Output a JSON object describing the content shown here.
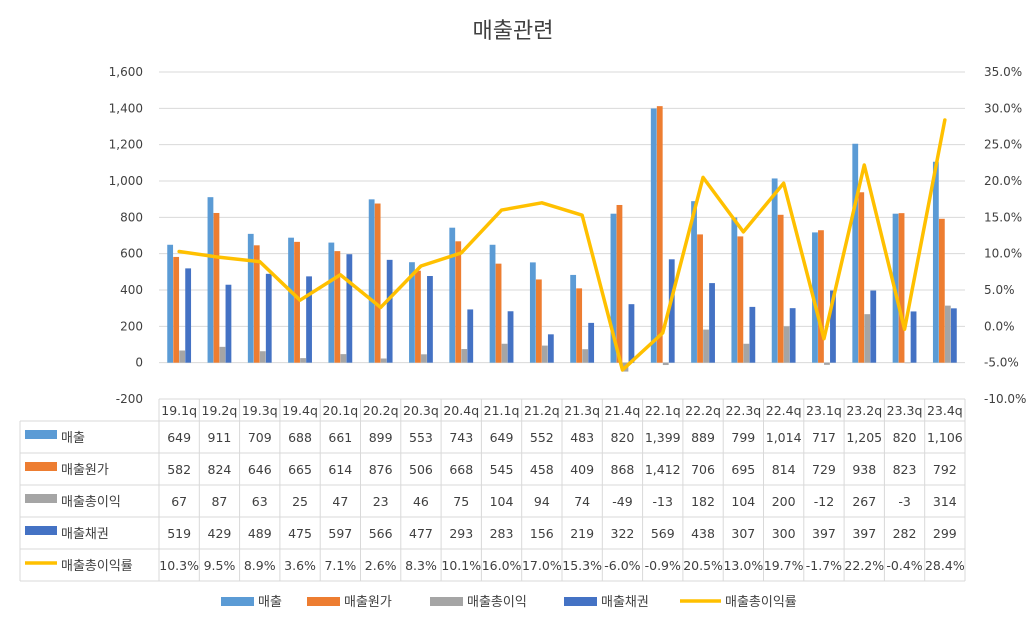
{
  "chart_data": {
    "type": "bar",
    "title": "매출관련",
    "categories": [
      "19.1q",
      "19.2q",
      "19.3q",
      "19.4q",
      "20.1q",
      "20.2q",
      "20.3q",
      "20.4q",
      "21.1q",
      "21.2q",
      "21.3q",
      "21.4q",
      "22.1q",
      "22.2q",
      "22.3q",
      "22.4q",
      "23.1q",
      "23.2q",
      "23.3q",
      "23.4q"
    ],
    "ylim": [
      -200,
      1600
    ],
    "y_ticks": [
      "-200",
      "0",
      "200",
      "400",
      "600",
      "800",
      "1,000",
      "1,200",
      "1,400",
      "1,600"
    ],
    "y2lim": [
      -10,
      35
    ],
    "y2_ticks": [
      "-10.0%",
      "-5.0%",
      "0.0%",
      "5.0%",
      "10.0%",
      "15.0%",
      "20.0%",
      "25.0%",
      "30.0%",
      "35.0%"
    ],
    "grid": true,
    "legend_position": "bottom",
    "data_table": true,
    "series": [
      {
        "name": "매출",
        "type": "bar",
        "axis": "left",
        "color": "#5b9bd5",
        "values": [
          649,
          911,
          709,
          688,
          661,
          899,
          553,
          743,
          649,
          552,
          483,
          820,
          1399,
          889,
          799,
          1014,
          717,
          1205,
          820,
          1106
        ],
        "labels": [
          "649",
          "911",
          "709",
          "688",
          "661",
          "899",
          "553",
          "743",
          "649",
          "552",
          "483",
          "820",
          "1,399",
          "889",
          "799",
          "1,014",
          "717",
          "1,205",
          "820",
          "1,106"
        ]
      },
      {
        "name": "매출원가",
        "type": "bar",
        "axis": "left",
        "color": "#ed7d31",
        "values": [
          582,
          824,
          646,
          665,
          614,
          876,
          506,
          668,
          545,
          458,
          409,
          868,
          1412,
          706,
          695,
          814,
          729,
          938,
          823,
          792
        ],
        "labels": [
          "582",
          "824",
          "646",
          "665",
          "614",
          "876",
          "506",
          "668",
          "545",
          "458",
          "409",
          "868",
          "1,412",
          "706",
          "695",
          "814",
          "729",
          "938",
          "823",
          "792"
        ]
      },
      {
        "name": "매출총이익",
        "type": "bar",
        "axis": "left",
        "color": "#a5a5a5",
        "values": [
          67,
          87,
          63,
          25,
          47,
          23,
          46,
          75,
          104,
          94,
          74,
          -49,
          -13,
          182,
          104,
          200,
          -12,
          267,
          -3,
          314
        ],
        "labels": [
          "67",
          "87",
          "63",
          "25",
          "47",
          "23",
          "46",
          "75",
          "104",
          "94",
          "74",
          "-49",
          "-13",
          "182",
          "104",
          "200",
          "-12",
          "267",
          "-3",
          "314"
        ]
      },
      {
        "name": "매출채권",
        "type": "bar",
        "axis": "left",
        "color": "#4472c4",
        "values": [
          519,
          429,
          489,
          475,
          597,
          566,
          477,
          293,
          283,
          156,
          219,
          322,
          569,
          438,
          307,
          300,
          397,
          397,
          282,
          299
        ],
        "labels": [
          "519",
          "429",
          "489",
          "475",
          "597",
          "566",
          "477",
          "293",
          "283",
          "156",
          "219",
          "322",
          "569",
          "438",
          "307",
          "300",
          "397",
          "397",
          "282",
          "299"
        ]
      },
      {
        "name": "매출총이익률",
        "type": "line",
        "axis": "right",
        "color": "#ffc000",
        "values": [
          10.3,
          9.5,
          8.9,
          3.6,
          7.1,
          2.6,
          8.3,
          10.1,
          16.0,
          17.0,
          15.3,
          -6.0,
          -0.9,
          20.5,
          13.0,
          19.7,
          -1.7,
          22.2,
          -0.4,
          28.4
        ],
        "labels": [
          "10.3%",
          "9.5%",
          "8.9%",
          "3.6%",
          "7.1%",
          "2.6%",
          "8.3%",
          "10.1%",
          "16.0%",
          "17.0%",
          "15.3%",
          "-6.0%",
          "-0.9%",
          "20.5%",
          "13.0%",
          "19.7%",
          "-1.7%",
          "22.2%",
          "-0.4%",
          "28.4%"
        ]
      }
    ]
  }
}
